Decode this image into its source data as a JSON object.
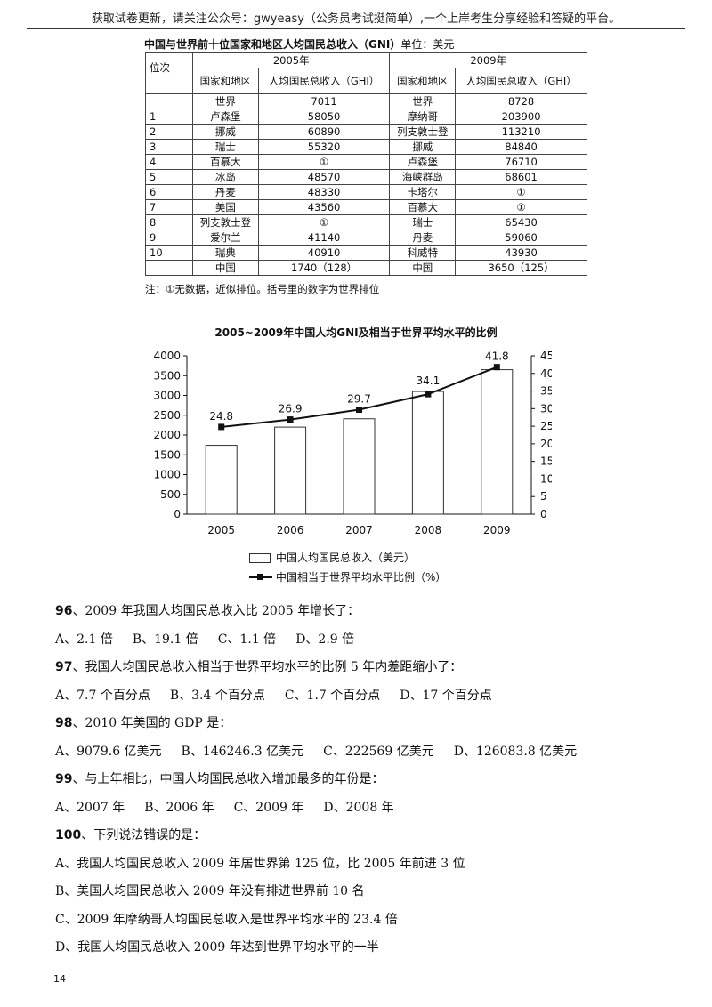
{
  "header": "获取试卷更新，请关注公众号：gwyeasy（公务员考试挺简单）,一个上岸考生分享经验和答疑的平台。",
  "table": {
    "title": "中国与世界前十位国家和地区人均国民总收入（GNI）",
    "unit": "单位：美元",
    "col_rank": "位次",
    "year_a": "2005年",
    "year_b": "2009年",
    "col_country": "国家和地区",
    "col_gni": "人均国民总收入（GHI）",
    "rows": [
      [
        "",
        "世界",
        "7011",
        "世界",
        "8728"
      ],
      [
        "1",
        "卢森堡",
        "58050",
        "摩纳哥",
        "203900"
      ],
      [
        "2",
        "挪威",
        "60890",
        "列支敦士登",
        "113210"
      ],
      [
        "3",
        "瑞士",
        "55320",
        "挪威",
        "84840"
      ],
      [
        "4",
        "百慕大",
        "①",
        "卢森堡",
        "76710"
      ],
      [
        "5",
        "冰岛",
        "48570",
        "海峡群岛",
        "68601"
      ],
      [
        "6",
        "丹麦",
        "48330",
        "卡塔尔",
        "①"
      ],
      [
        "7",
        "美国",
        "43560",
        "百慕大",
        "①"
      ],
      [
        "8",
        "列支敦士登",
        "①",
        "瑞士",
        "65430"
      ],
      [
        "9",
        "爱尔兰",
        "41140",
        "丹麦",
        "59060"
      ],
      [
        "10",
        "瑞典",
        "40910",
        "科威特",
        "43930"
      ],
      [
        "",
        "中国",
        "1740（128）",
        "中国",
        "3650（125）"
      ]
    ],
    "note": "注：①无数据，近似排位。括号里的数字为世界排位"
  },
  "chart_data": {
    "type": "bar",
    "title": "2005~2009年中国人均GNI及相当于世界平均水平的比例",
    "categories": [
      "2005",
      "2006",
      "2007",
      "2008",
      "2009"
    ],
    "series": [
      {
        "name": "中国人均国民总收入（美元）",
        "type": "bar",
        "axis": "left",
        "values": [
          1740,
          2200,
          2410,
          3100,
          3650
        ]
      },
      {
        "name": "中国相当于世界平均水平比例（%）",
        "type": "line",
        "axis": "right",
        "values": [
          24.8,
          26.9,
          29.7,
          34.1,
          41.8
        ]
      }
    ],
    "y_left": {
      "lim": [
        0,
        4000
      ],
      "ticks": [
        0,
        500,
        1000,
        1500,
        2000,
        2500,
        3000,
        3500,
        4000
      ]
    },
    "y_right": {
      "lim": [
        0,
        45
      ],
      "ticks": [
        0,
        5,
        10,
        15,
        20,
        25,
        30,
        35,
        40,
        45
      ]
    },
    "data_labels": [
      "24.8",
      "26.9",
      "29.7",
      "34.1",
      "41.8"
    ],
    "legend": [
      "中国人均国民总收入（美元）",
      "中国相当于世界平均水平比例（%）"
    ],
    "grid": false
  },
  "questions": [
    {
      "num": "96",
      "text": "、2009 年我国人均国民总收入比 2005 年增长了：",
      "options": [
        "A、2.1 倍",
        "B、19.1 倍",
        "C、1.1 倍",
        "D、2.9 倍"
      ]
    },
    {
      "num": "97",
      "text": "、我国人均国民总收入相当于世界平均水平的比例 5 年内差距缩小了：",
      "options": [
        "A、7.7 个百分点",
        "B、3.4 个百分点",
        "C、1.7 个百分点",
        "D、17 个百分点"
      ]
    },
    {
      "num": "98",
      "text": "、2010 年美国的 GDP 是：",
      "options": [
        "A、9079.6 亿美元",
        "B、146246.3 亿美元",
        "C、222569 亿美元",
        "D、126083.8 亿美元"
      ]
    },
    {
      "num": "99",
      "text": "、与上年相比，中国人均国民总收入增加最多的年份是：",
      "options": [
        "A、2007 年",
        "B、2006 年",
        "C、2009 年",
        "D、2008 年"
      ]
    },
    {
      "num": "100",
      "text": "、下列说法错误的是：",
      "options_stacked": [
        "A、我国人均国民总收入 2009 年居世界第 125 位，比 2005 年前进 3 位",
        "B、美国人均国民总收入 2009 年没有排进世界前 10 名",
        "C、2009 年摩纳哥人均国民总收入是世界平均水平的 23.4 倍",
        "D、我国人均国民总收入 2009 年达到世界平均水平的一半"
      ]
    }
  ],
  "page_number": "14"
}
